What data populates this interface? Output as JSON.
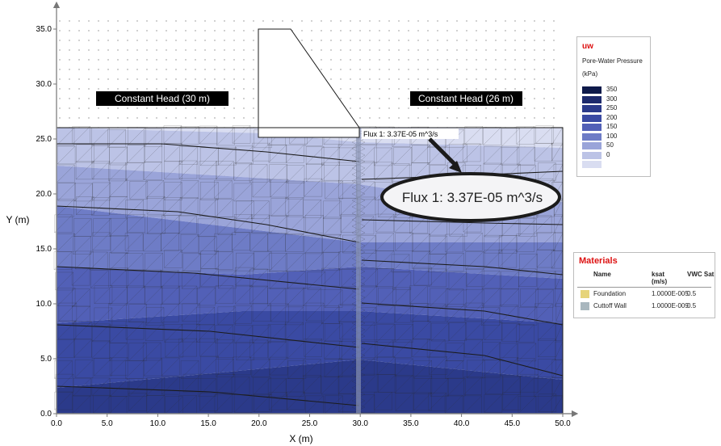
{
  "axes": {
    "xlabel": "X (m)",
    "ylabel": "Y (m)",
    "xlim": [
      0,
      50
    ],
    "ylim": [
      0,
      35
    ],
    "xticks": [
      "0.0",
      "5.0",
      "10.0",
      "15.0",
      "20.0",
      "25.0",
      "30.0",
      "35.0",
      "40.0",
      "45.0",
      "50.0"
    ],
    "yticks": [
      "0.0",
      "5.0",
      "10.0",
      "15.0",
      "20.0",
      "25.0",
      "30.0",
      "35.0"
    ]
  },
  "labels": {
    "left_head": "Constant Head (30 m)",
    "right_head": "Constant Head (26 m)",
    "flux_small": "Flux 1: 3.37E-05 m^3/s",
    "flux_big": "Flux 1: 3.37E-05 m^3/s"
  },
  "legend": {
    "code": "uw",
    "title": "Pore-Water Pressure",
    "unit": "(kPa)",
    "entries": [
      {
        "label": "350",
        "color": "#0e1a4a"
      },
      {
        "label": "300",
        "color": "#1d2a6c"
      },
      {
        "label": "250",
        "color": "#2b3a8a"
      },
      {
        "label": "200",
        "color": "#3a4aa3"
      },
      {
        "label": "150",
        "color": "#5260b7"
      },
      {
        "label": "100",
        "color": "#6e7cc6"
      },
      {
        "label": "50",
        "color": "#9aa4d9"
      },
      {
        "label": "0",
        "color": "#bcc3e6"
      },
      {
        "label": "",
        "color": "#d9ddf1"
      }
    ]
  },
  "materials": {
    "title": "Materials",
    "headers": [
      "Name",
      "ksat (m/s)",
      "VWC Sat"
    ],
    "rows": [
      {
        "name": "Foundation",
        "ksat": "1.0000E-005",
        "vwc": "0.5",
        "color": "#e6d47a"
      },
      {
        "name": "Cuttoff Wall",
        "ksat": "1.0000E-009",
        "vwc": "0.5",
        "color": "#a9b7be"
      }
    ]
  }
}
